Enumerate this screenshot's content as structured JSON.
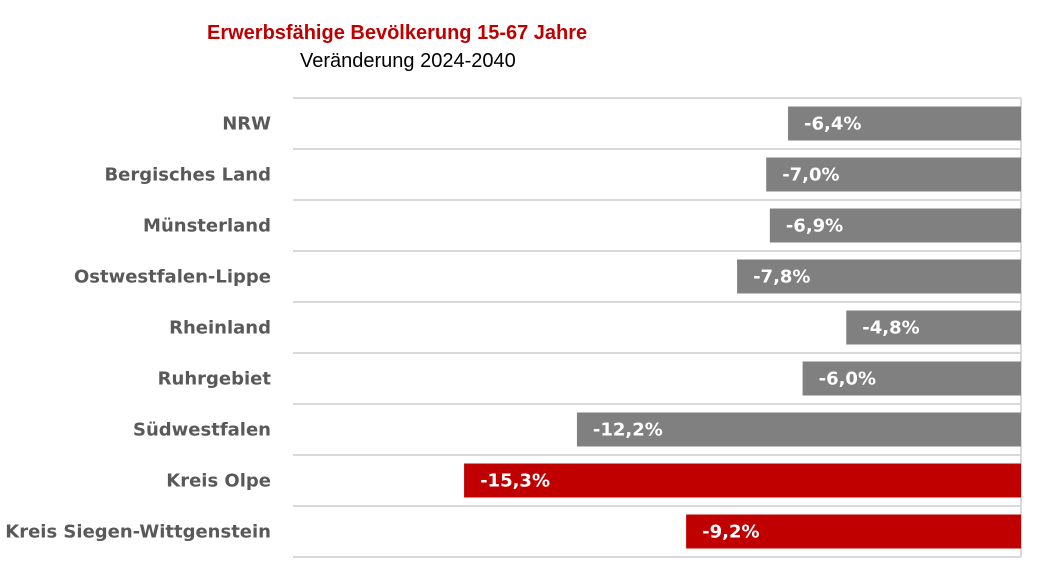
{
  "chart_data": {
    "type": "bar",
    "orientation": "horizontal",
    "title": "Erwerbsfähige Bevölkerung 15-67 Jahre",
    "subtitle": "Veränderung 2024-2040",
    "categories": [
      "NRW",
      "Bergisches Land",
      "Münsterland",
      "Ostwestfalen-Lippe",
      "Rheinland",
      "Ruhrgebiet",
      "Südwestfalen",
      "Kreis Olpe",
      "Kreis Siegen-Wittgenstein"
    ],
    "values": [
      -6.4,
      -7.0,
      -6.9,
      -7.8,
      -4.8,
      -6.0,
      -12.2,
      -15.3,
      -9.2
    ],
    "value_labels": [
      "-6,4%",
      "-7,0%",
      "-6,9%",
      "-7,8%",
      "-4,8%",
      "-6,0%",
      "-12,2%",
      "-15,3%",
      "-9,2%"
    ],
    "highlight": [
      false,
      false,
      false,
      false,
      false,
      false,
      false,
      true,
      true
    ],
    "xlim": [
      -20,
      0
    ],
    "grid": true,
    "colors": {
      "default": "#808080",
      "highlight": "#c00000",
      "grid": "#d9d9d9",
      "title": "#c00000"
    }
  }
}
